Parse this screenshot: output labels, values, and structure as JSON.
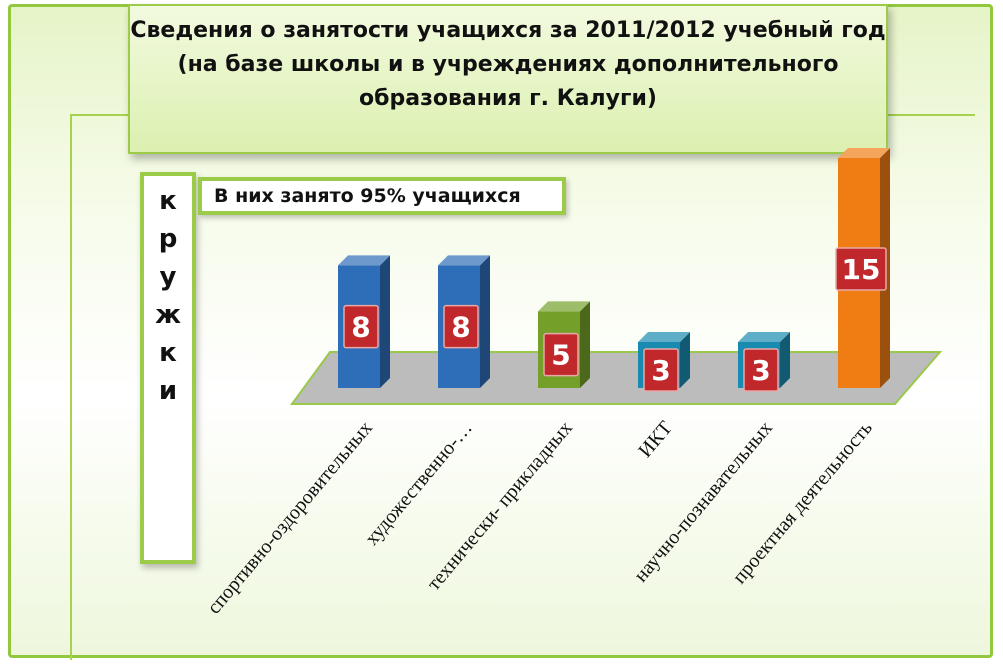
{
  "chart_data": {
    "type": "bar",
    "title": [
      "Сведения о занятости учащихся за 2011/2012 учебный год",
      "(на базе школы и в учреждениях дополнительного",
      "образования г. Калуги)"
    ],
    "ylabel": [
      "к",
      "р",
      "у",
      "ж",
      "к",
      "и"
    ],
    "annotation": "В них занято 95% учащихся",
    "categories": [
      "спортивно-оздоровительных",
      "художественно-…",
      "технически- прикладных",
      "ИКТ",
      "научно-познавательных",
      "проектная деятельность"
    ],
    "values": [
      8,
      8,
      5,
      3,
      3,
      15
    ],
    "colors": [
      "#2e6db7",
      "#2e6db7",
      "#74a02a",
      "#1a8bb0",
      "#1a8bb0",
      "#ef7d14"
    ],
    "label_box_color": "#c0282b",
    "floor_color": "#bcbcbc",
    "ylim": [
      0,
      15
    ],
    "grid": false,
    "legend": "none"
  }
}
